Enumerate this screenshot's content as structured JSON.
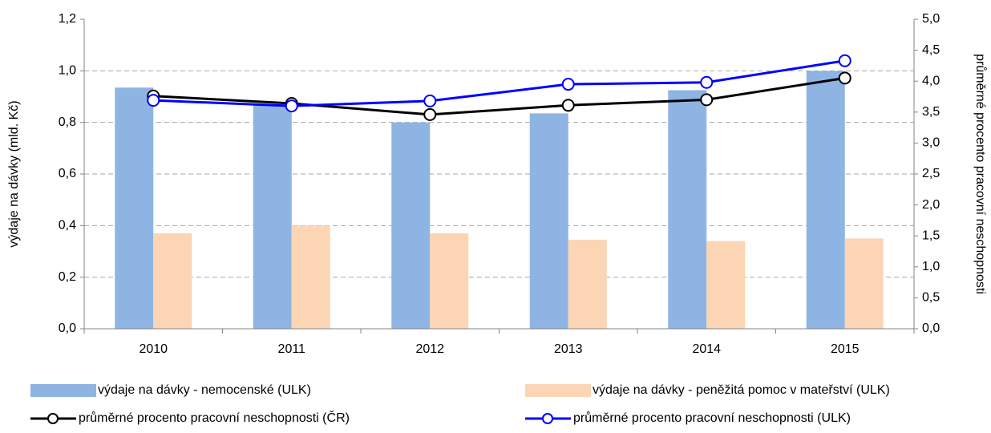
{
  "chart_data": {
    "type": "bar-line",
    "categories": [
      "2010",
      "2011",
      "2012",
      "2013",
      "2014",
      "2015"
    ],
    "y_label": "výdaje na dávky (mld. Kč)",
    "y2_label": "průměrné procento pracovní neschopnosti",
    "ylim": [
      0,
      1.2
    ],
    "yticks": [
      {
        "value": 0,
        "label": "0,0"
      },
      {
        "value": 0.2,
        "label": "0,2"
      },
      {
        "value": 0.4,
        "label": "0,4"
      },
      {
        "value": 0.6,
        "label": "0,6"
      },
      {
        "value": 0.8,
        "label": "0,8"
      },
      {
        "value": 1.0,
        "label": "1,0"
      },
      {
        "value": 1.2,
        "label": "1,2"
      }
    ],
    "y2lim": [
      0,
      5
    ],
    "y2ticks": [
      {
        "value": 0,
        "label": "0,0"
      },
      {
        "value": 0.5,
        "label": "0,5"
      },
      {
        "value": 1.0,
        "label": "1,0"
      },
      {
        "value": 1.5,
        "label": "1,5"
      },
      {
        "value": 2.0,
        "label": "2,0"
      },
      {
        "value": 2.5,
        "label": "2,5"
      },
      {
        "value": 3.0,
        "label": "3,0"
      },
      {
        "value": 3.5,
        "label": "3,5"
      },
      {
        "value": 4.0,
        "label": "4,0"
      },
      {
        "value": 4.5,
        "label": "4,5"
      },
      {
        "value": 5.0,
        "label": "5,0"
      }
    ],
    "grid": true,
    "series": [
      {
        "name": "výdaje na dávky - nemocenské (ULK)",
        "kind": "bar",
        "color": "#8eb4e3",
        "values": [
          0.935,
          0.87,
          0.8,
          0.835,
          0.925,
          1.0
        ]
      },
      {
        "name": "výdaje na dávky - peněžitá pomoc v mateřství (ULK)",
        "kind": "bar",
        "color": "#fcd5b5",
        "values": [
          0.37,
          0.4,
          0.37,
          0.345,
          0.34,
          0.35
        ]
      },
      {
        "name": "průměrné procento pracovní neschopnosti (ČR)",
        "kind": "line",
        "axis": "y2",
        "color": "#000000",
        "values": [
          3.76,
          3.64,
          3.46,
          3.61,
          3.7,
          4.05
        ]
      },
      {
        "name": "průměrné procento pracovní neschopnosti (ULK)",
        "kind": "line",
        "axis": "y2",
        "color": "#0000ff",
        "values": [
          3.69,
          3.6,
          3.68,
          3.95,
          3.98,
          4.33
        ]
      }
    ]
  }
}
